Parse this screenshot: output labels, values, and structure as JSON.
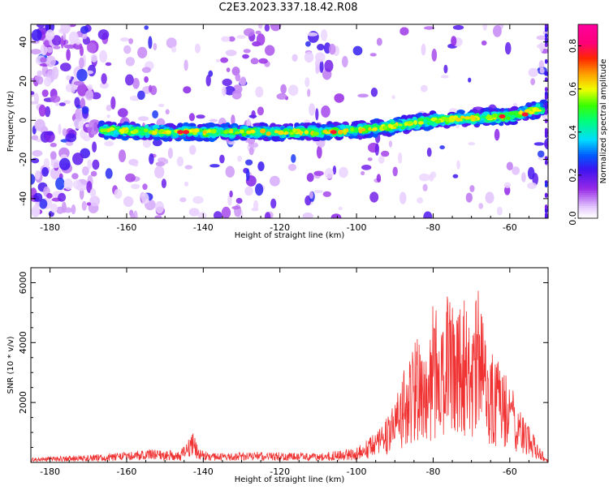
{
  "figure": {
    "title": "C2E3.2023.337.18.42.R08"
  },
  "colors": {
    "snr_line": "#f03232",
    "axis": "#000000"
  },
  "chart_data": [
    {
      "type": "heatmap",
      "title": "C2E3.2023.337.18.42.R08",
      "xlabel": "Height of straight line (km)",
      "ylabel": "Frequency (Hz)",
      "xlim": [
        -185,
        -50
      ],
      "ylim": [
        -50,
        49
      ],
      "xticks": [
        -180,
        -160,
        -140,
        -120,
        -100,
        -80,
        -60
      ],
      "yticks": [
        -40,
        -20,
        0,
        20,
        40
      ],
      "colorbar": {
        "label": "Normalized spectral amplitude",
        "range": [
          0.0,
          0.9
        ],
        "ticks": [
          0.0,
          0.2,
          0.4,
          0.6,
          0.8
        ],
        "colormap": "rainbow (white-violet-blue-cyan-green-yellow-red-magenta)"
      },
      "ridge": {
        "description": "bright band of high amplitude",
        "x": [
          -167,
          -150,
          -130,
          -110,
          -100,
          -90,
          -80,
          -70,
          -60,
          -52
        ],
        "frequency": [
          -5,
          -6,
          -6,
          -6,
          -5,
          -3,
          0,
          1,
          2,
          6
        ],
        "peak_amplitude": 0.9
      },
      "grid": false
    },
    {
      "type": "line",
      "xlabel": "Height of straight line (km)",
      "ylabel": "SNR (10 * v/v)",
      "xlim": [
        -185,
        -50
      ],
      "ylim": [
        0,
        6500
      ],
      "xticks": [
        -180,
        -160,
        -140,
        -120,
        -100,
        -80,
        -60
      ],
      "yticks": [
        2000,
        4000,
        6000
      ],
      "series": [
        {
          "x": [
            -185,
            -180,
            -170,
            -165,
            -160,
            -155,
            -150,
            -146,
            -144,
            -143,
            -141,
            -138,
            -130,
            -120,
            -110,
            -105,
            -100,
            -97,
            -94,
            -92,
            -90,
            -88,
            -86,
            -84,
            -82,
            -80,
            -78,
            -76,
            -74,
            -72,
            -70,
            -68,
            -66,
            -64,
            -62,
            -60,
            -58,
            -56,
            -54,
            -52,
            -51
          ],
          "y": [
            150,
            200,
            250,
            300,
            350,
            450,
            400,
            400,
            700,
            1100,
            450,
            300,
            350,
            350,
            300,
            400,
            500,
            800,
            1200,
            1500,
            2200,
            3000,
            3800,
            4300,
            3500,
            5400,
            4600,
            6300,
            5200,
            5800,
            4300,
            6400,
            3900,
            3600,
            3200,
            2800,
            2000,
            1400,
            1000,
            600,
            150
          ]
        }
      ],
      "grid": false
    }
  ]
}
